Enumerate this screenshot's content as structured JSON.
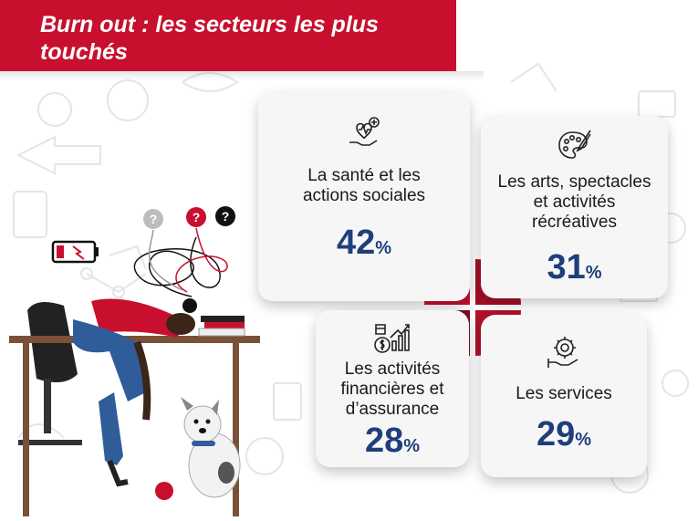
{
  "title": "Burn out : les secteurs les plus touchés",
  "colors": {
    "banner": "#c8102e",
    "value": "#1f3f7a",
    "circle_dark": "#7a0f1e",
    "circle_light": "#c8102e"
  },
  "cards": [
    {
      "label": "La santé et les actions sociales",
      "value": "42",
      "unit": "%",
      "icon": "heart-hand-icon"
    },
    {
      "label": "Les arts, spectacles et activités récréatives",
      "value": "31",
      "unit": "%",
      "icon": "palette-icon"
    },
    {
      "label": "Les activités financières et d’assurance",
      "value": "28",
      "unit": "%",
      "icon": "finance-icon"
    },
    {
      "label": "Les services",
      "value": "29",
      "unit": "%",
      "icon": "gear-hand-icon"
    }
  ],
  "illustration": {
    "question_marks": [
      "?",
      "?",
      "?"
    ]
  }
}
